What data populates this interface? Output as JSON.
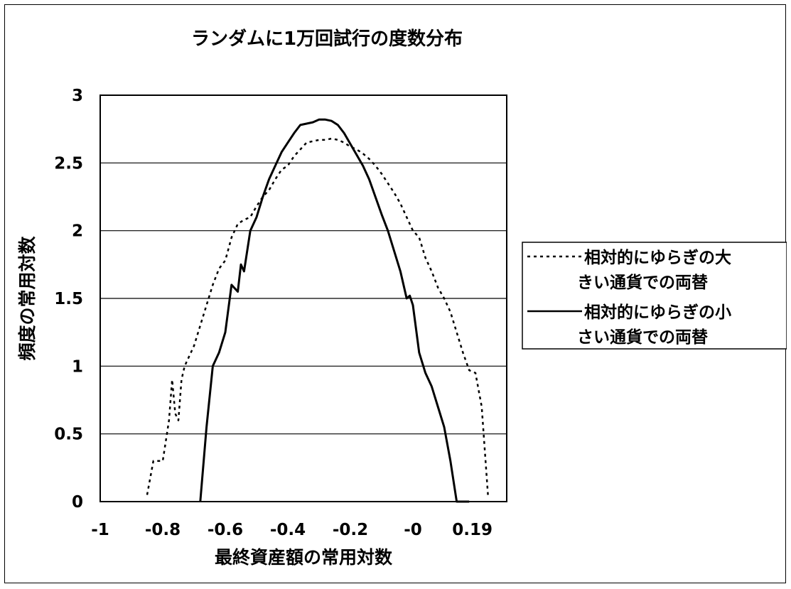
{
  "chart_data": {
    "type": "line",
    "title": "ランダムに1万回試行の度数分布",
    "xlabel": "最終資産額の常用対数",
    "ylabel": "頻度の常用対数",
    "xlim": [
      -1,
      0.3
    ],
    "ylim": [
      0,
      3
    ],
    "x_ticks": [
      -1,
      -0.8,
      -0.6,
      -0.4,
      -0.2,
      0,
      0.19
    ],
    "x_tick_labels": [
      "-1",
      "-0.8",
      "-0.6",
      "-0.4",
      "-0.2",
      "-0",
      "0.19"
    ],
    "y_ticks": [
      0,
      0.5,
      1,
      1.5,
      2,
      2.5,
      3
    ],
    "y_tick_labels": [
      "0",
      "0.5",
      "1",
      "1.5",
      "2",
      "2.5",
      "3"
    ],
    "grid": "horizontal",
    "legend_position": "right",
    "series": [
      {
        "name": "相対的にゆらぎの大きい通貨での両替",
        "style": "dotted",
        "color": "#000000",
        "legend_lines": [
          "相対的にゆらぎの大",
          "きい通貨での両替"
        ],
        "x": [
          -0.85,
          -0.83,
          -0.82,
          -0.8,
          -0.78,
          -0.77,
          -0.76,
          -0.75,
          -0.74,
          -0.73,
          -0.72,
          -0.7,
          -0.68,
          -0.66,
          -0.64,
          -0.62,
          -0.6,
          -0.58,
          -0.56,
          -0.54,
          -0.52,
          -0.5,
          -0.48,
          -0.46,
          -0.44,
          -0.42,
          -0.4,
          -0.38,
          -0.36,
          -0.34,
          -0.32,
          -0.3,
          -0.28,
          -0.26,
          -0.24,
          -0.22,
          -0.2,
          -0.18,
          -0.16,
          -0.14,
          -0.12,
          -0.1,
          -0.08,
          -0.06,
          -0.04,
          -0.02,
          0.0,
          0.02,
          0.04,
          0.06,
          0.08,
          0.1,
          0.12,
          0.14,
          0.16,
          0.18,
          0.2,
          0.22,
          0.24
        ],
        "y": [
          0.05,
          0.3,
          0.3,
          0.3,
          0.6,
          0.9,
          0.65,
          0.6,
          0.9,
          1.0,
          1.05,
          1.15,
          1.3,
          1.45,
          1.6,
          1.72,
          1.78,
          1.95,
          2.05,
          2.08,
          2.1,
          2.18,
          2.25,
          2.3,
          2.38,
          2.45,
          2.48,
          2.55,
          2.6,
          2.65,
          2.66,
          2.67,
          2.67,
          2.68,
          2.67,
          2.65,
          2.62,
          2.6,
          2.57,
          2.53,
          2.48,
          2.42,
          2.35,
          2.28,
          2.2,
          2.1,
          2.0,
          1.95,
          1.8,
          1.7,
          1.58,
          1.5,
          1.4,
          1.25,
          1.1,
          0.97,
          0.95,
          0.7,
          0.05
        ]
      },
      {
        "name": "相対的にゆらぎの小さい通貨での両替",
        "style": "solid",
        "color": "#000000",
        "legend_lines": [
          "相対的にゆらぎの小",
          "さい通貨での両替"
        ],
        "x": [
          -0.68,
          -0.66,
          -0.64,
          -0.62,
          -0.6,
          -0.58,
          -0.56,
          -0.55,
          -0.54,
          -0.52,
          -0.5,
          -0.48,
          -0.46,
          -0.44,
          -0.42,
          -0.4,
          -0.38,
          -0.36,
          -0.34,
          -0.32,
          -0.3,
          -0.28,
          -0.26,
          -0.24,
          -0.22,
          -0.2,
          -0.18,
          -0.16,
          -0.14,
          -0.12,
          -0.1,
          -0.08,
          -0.06,
          -0.04,
          -0.02,
          -0.01,
          0.0,
          0.02,
          0.04,
          0.06,
          0.08,
          0.1,
          0.12,
          0.14,
          0.16,
          0.18
        ],
        "y": [
          0.0,
          0.55,
          1.0,
          1.1,
          1.25,
          1.6,
          1.55,
          1.75,
          1.7,
          2.0,
          2.1,
          2.25,
          2.38,
          2.48,
          2.58,
          2.65,
          2.72,
          2.78,
          2.79,
          2.8,
          2.82,
          2.82,
          2.81,
          2.78,
          2.72,
          2.64,
          2.56,
          2.48,
          2.38,
          2.25,
          2.12,
          2.0,
          1.85,
          1.7,
          1.5,
          1.52,
          1.45,
          1.1,
          0.95,
          0.85,
          0.7,
          0.55,
          0.3,
          0.0,
          0.0,
          0.0
        ]
      }
    ]
  }
}
